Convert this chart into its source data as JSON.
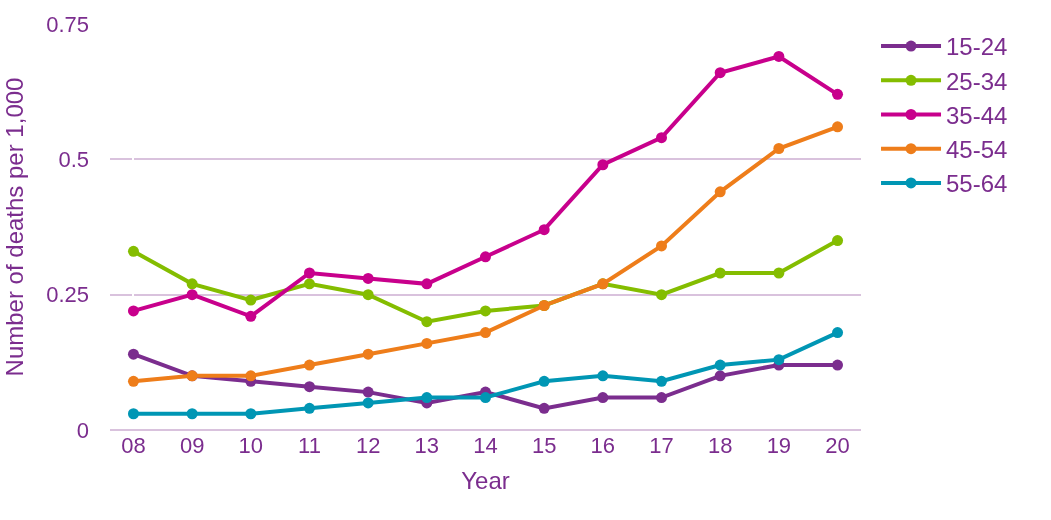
{
  "chart_data": {
    "type": "line",
    "xlabel": "Year",
    "ylabel": "Number of deaths per 1,000",
    "categories": [
      "08",
      "09",
      "10",
      "11",
      "12",
      "13",
      "14",
      "15",
      "16",
      "17",
      "18",
      "19",
      "20"
    ],
    "ylim": [
      0,
      0.75
    ],
    "yticks": [
      {
        "value": 0,
        "label": "0"
      },
      0.25,
      0.5,
      0.75
    ],
    "grid": "y",
    "legend": "right",
    "marker": "circle",
    "line_style": "solid",
    "series": [
      {
        "name": "15-24",
        "color": "#7b2d8e",
        "values": [
          0.14,
          0.1,
          0.09,
          0.08,
          0.07,
          0.05,
          0.07,
          0.04,
          0.06,
          0.06,
          0.1,
          0.12,
          0.12
        ]
      },
      {
        "name": "25-34",
        "color": "#84bd00",
        "values": [
          0.33,
          0.27,
          0.24,
          0.27,
          0.25,
          0.2,
          0.22,
          0.23,
          0.27,
          0.25,
          0.29,
          0.29,
          0.35
        ]
      },
      {
        "name": "35-44",
        "color": "#c8008c",
        "values": [
          0.22,
          0.25,
          0.21,
          0.29,
          0.28,
          0.27,
          0.32,
          0.37,
          0.49,
          0.54,
          0.66,
          0.69,
          0.62
        ]
      },
      {
        "name": "45-54",
        "color": "#ee7d1a",
        "values": [
          0.09,
          0.1,
          0.1,
          0.12,
          0.14,
          0.16,
          0.18,
          0.23,
          0.27,
          0.34,
          0.44,
          0.52,
          0.56
        ]
      },
      {
        "name": "55-64",
        "color": "#0096b4",
        "values": [
          0.03,
          0.03,
          0.03,
          0.04,
          0.05,
          0.06,
          0.06,
          0.09,
          0.1,
          0.09,
          0.12,
          0.13,
          0.18
        ]
      }
    ]
  }
}
